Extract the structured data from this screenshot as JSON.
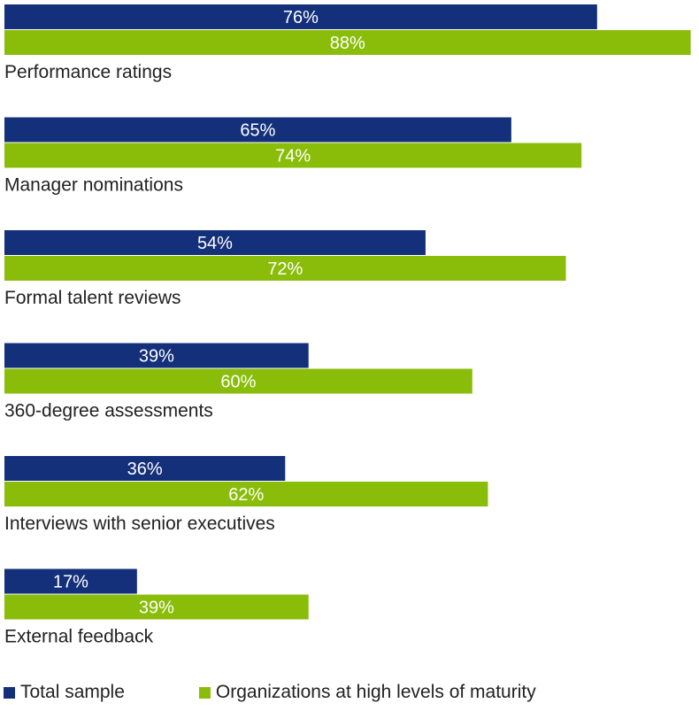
{
  "chart_data": {
    "type": "bar",
    "orientation": "horizontal",
    "categories": [
      "Performance ratings",
      "Manager nominations",
      "Formal talent reviews",
      "360-degree assessments",
      "Interviews with senior executives",
      "External feedback"
    ],
    "series": [
      {
        "name": "Total sample",
        "color": "#14307a",
        "values": [
          76,
          65,
          54,
          39,
          36,
          17
        ],
        "labels": [
          "76%",
          "65%",
          "54%",
          "39%",
          "36%",
          "17%"
        ]
      },
      {
        "name": "Organizations at high levels of maturity",
        "color": "#8abd0a",
        "values": [
          88,
          74,
          72,
          60,
          62,
          39
        ],
        "labels": [
          "88%",
          "74%",
          "72%",
          "60%",
          "62%",
          "39%"
        ]
      }
    ],
    "xlim": [
      0,
      88.5
    ],
    "legend_position": "bottom",
    "grid": false
  }
}
